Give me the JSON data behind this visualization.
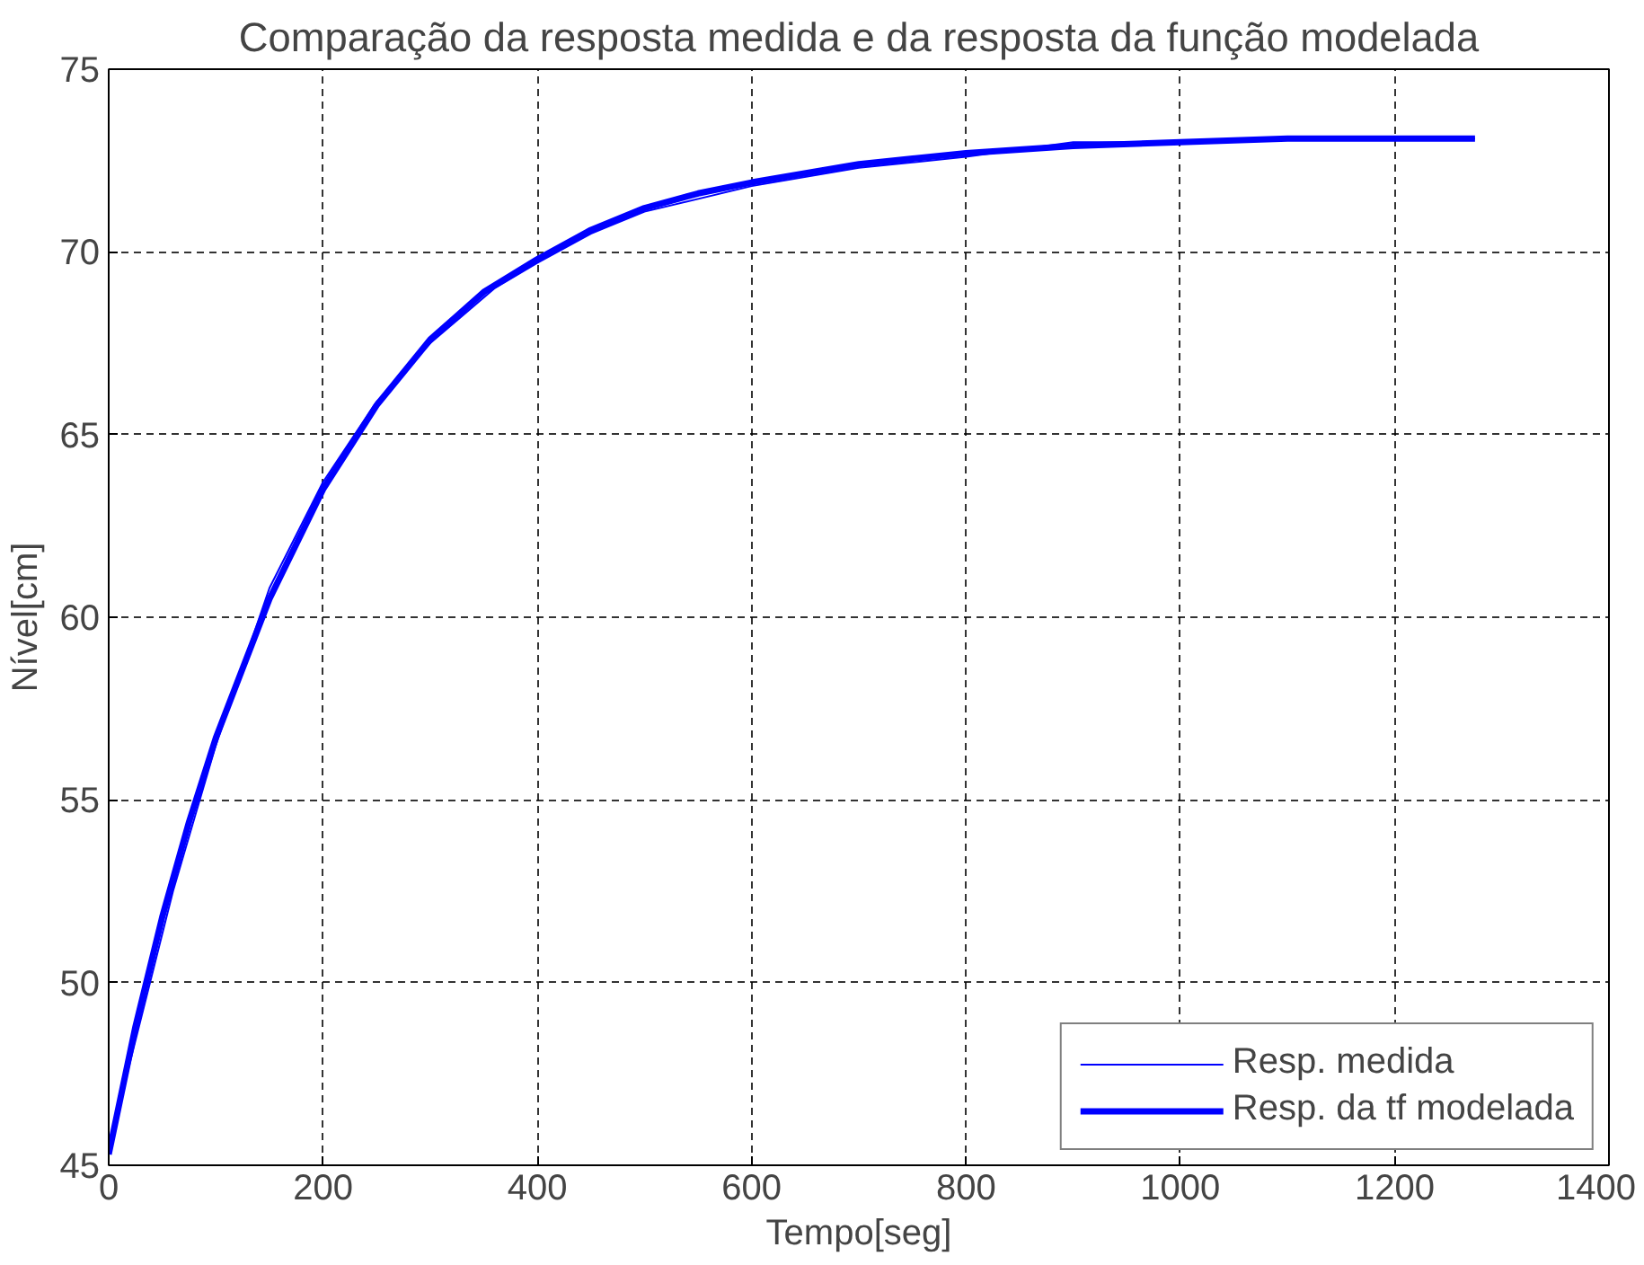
{
  "chart_data": {
    "type": "line",
    "title": "Comparação da resposta medida e da resposta da função modelada",
    "xlabel": "Tempo[seg]",
    "ylabel": "Nível[cm]",
    "xlim": [
      0,
      1400
    ],
    "ylim": [
      45,
      75
    ],
    "xticks": [
      0,
      200,
      400,
      600,
      800,
      1000,
      1200,
      1400
    ],
    "yticks": [
      45,
      50,
      55,
      60,
      65,
      70,
      75
    ],
    "grid": true,
    "legend": "bottom right",
    "line_style": "solid",
    "series": [
      {
        "name": "Resp. medida",
        "color": "#0000ff",
        "x": [
          0,
          30,
          60,
          100,
          150,
          200,
          250,
          300,
          360,
          400,
          450,
          500,
          600,
          700,
          800,
          900,
          1000,
          1100,
          1275
        ],
        "values": [
          45.5,
          49,
          52.5,
          56.5,
          60.8,
          63.7,
          65.9,
          67.5,
          69.0,
          69.7,
          70.5,
          71.1,
          71.8,
          72.3,
          72.6,
          73.0,
          73.0,
          73.1,
          73.1
        ]
      },
      {
        "name": "Resp. da tf modelada",
        "color": "#0000ff",
        "x": [
          0,
          25,
          50,
          75,
          100,
          150,
          200,
          250,
          300,
          350,
          400,
          450,
          500,
          550,
          600,
          700,
          800,
          900,
          1000,
          1100,
          1275
        ],
        "values": [
          45.3,
          48.8,
          51.8,
          54.4,
          56.7,
          60.5,
          63.5,
          65.8,
          67.6,
          68.9,
          69.8,
          70.6,
          71.2,
          71.6,
          71.9,
          72.4,
          72.7,
          72.9,
          73.0,
          73.1,
          73.1
        ]
      }
    ]
  }
}
